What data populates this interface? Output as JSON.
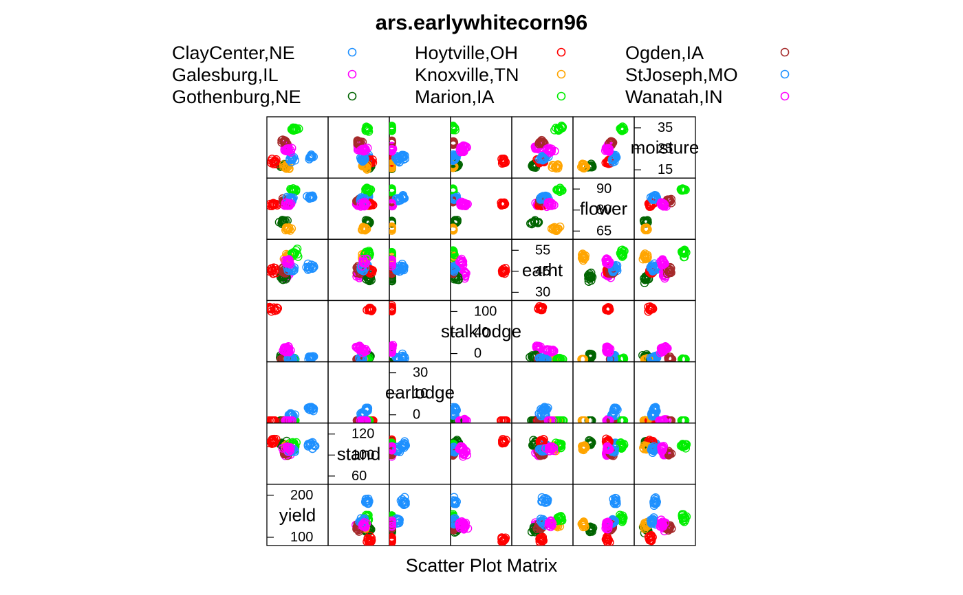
{
  "chart_data": {
    "type": "scatter",
    "title": "ars.earlywhitecorn96",
    "xlabel": "Scatter Plot Matrix",
    "legend_position": "top",
    "variables": [
      "yield",
      "stand",
      "earlodge",
      "stalklodge",
      "earht",
      "flower",
      "moisture"
    ],
    "diag_ticks": [
      {
        "variable": "moisture",
        "ticks": [
          "15",
          "25",
          "35"
        ]
      },
      {
        "variable": "flower",
        "ticks": [
          "65",
          "80",
          "90"
        ]
      },
      {
        "variable": "earht",
        "ticks": [
          "30",
          "45",
          "55"
        ]
      },
      {
        "variable": "stalklodge",
        "ticks": [
          "0",
          "40",
          "100"
        ]
      },
      {
        "variable": "earlodge",
        "ticks": [
          "0",
          "10",
          "30"
        ]
      },
      {
        "variable": "stand",
        "ticks": [
          "60",
          "100",
          "120"
        ]
      },
      {
        "variable": "yield",
        "ticks": [
          "100",
          "200"
        ]
      }
    ],
    "series": [
      {
        "name": "ClayCenter,NE",
        "color": "#1E90FF",
        "means": {
          "yield": 220,
          "stand": 98,
          "earlodge": 8,
          "stalklodge": 8,
          "earht": 44,
          "flower": 84,
          "moisture": 21
        }
      },
      {
        "name": "Galesburg,IL",
        "color": "#FF00FF",
        "means": {
          "yield": 120,
          "stand": 88,
          "earlodge": 1,
          "stalklodge": 25,
          "earht": 40,
          "flower": 80,
          "moisture": 25
        }
      },
      {
        "name": "Gothenburg,NE",
        "color": "#006400",
        "means": {
          "yield": 105,
          "stand": 100,
          "earlodge": 0,
          "stalklodge": 10,
          "earht": 38,
          "flower": 70,
          "moisture": 17
        }
      },
      {
        "name": "Hoytville,OH",
        "color": "#FF0000",
        "means": {
          "yield": 65,
          "stand": 102,
          "earlodge": 0,
          "stalklodge": 95,
          "earht": 42,
          "flower": 80,
          "moisture": 19
        }
      },
      {
        "name": "Knoxville,TN",
        "color": "#FFA500",
        "means": {
          "yield": 125,
          "stand": 95,
          "earlodge": 0,
          "stalklodge": 2,
          "earht": 50,
          "flower": 66,
          "moisture": 17
        }
      },
      {
        "name": "Marion,IA",
        "color": "#00EE00",
        "means": {
          "yield": 150,
          "stand": 98,
          "earlodge": 0,
          "stalklodge": 3,
          "earht": 52,
          "flower": 88,
          "moisture": 33
        }
      },
      {
        "name": "Ogden,IA",
        "color": "#A52A2A",
        "means": {
          "yield": 115,
          "stand": 88,
          "earlodge": 0,
          "stalklodge": 3,
          "earht": 42,
          "flower": 82,
          "moisture": 27
        }
      },
      {
        "name": "StJoseph,MO",
        "color": "#1E90FF",
        "means": {
          "yield": 140,
          "stand": 92,
          "earlodge": 5,
          "stalklodge": 5,
          "earht": 43,
          "flower": 83,
          "moisture": 20
        }
      },
      {
        "name": "Wanatah,IN",
        "color": "#FF00FF",
        "means": {
          "yield": 125,
          "stand": 94,
          "earlodge": 0,
          "stalklodge": 20,
          "earht": 47,
          "flower": 80,
          "moisture": 24
        }
      }
    ]
  }
}
